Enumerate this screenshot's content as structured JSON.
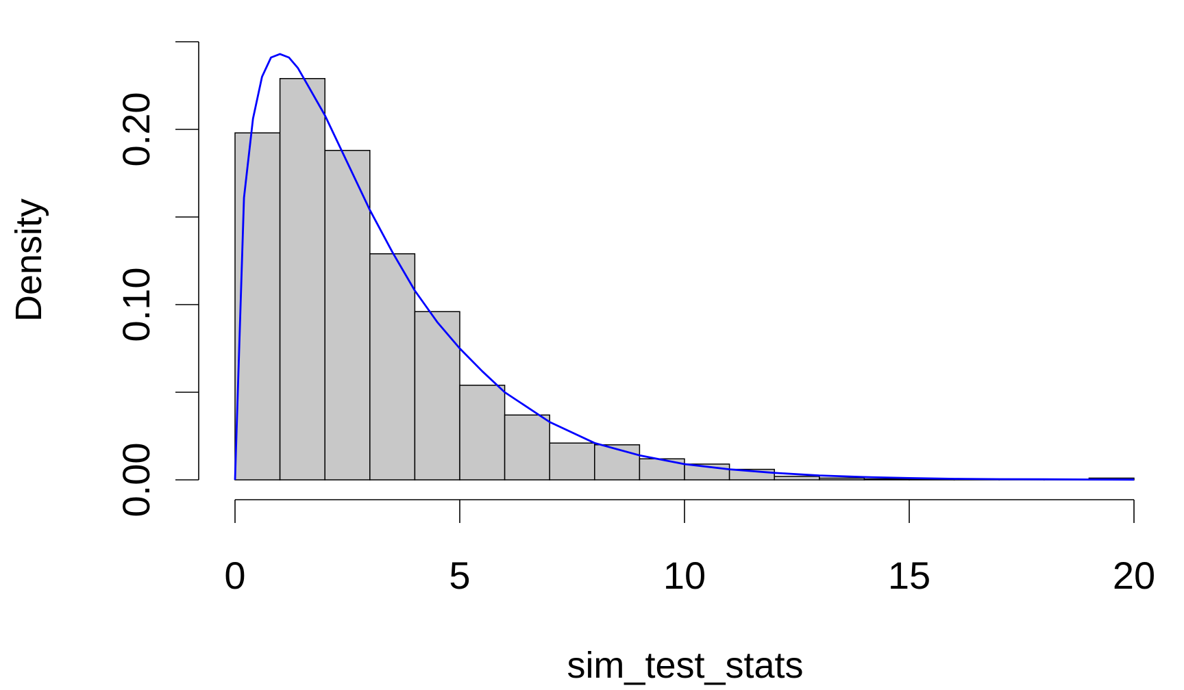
{
  "chart_data": {
    "type": "bar",
    "xlabel": "sim_test_stats",
    "ylabel": "Density",
    "xlim": [
      0,
      20
    ],
    "ylim": [
      0,
      0.25
    ],
    "x_ticks": [
      {
        "value": 0,
        "label": "0"
      },
      {
        "value": 5,
        "label": "5"
      },
      {
        "value": 10,
        "label": "10"
      },
      {
        "value": 15,
        "label": "15"
      },
      {
        "value": 20,
        "label": "20"
      }
    ],
    "y_ticks": [
      {
        "value": 0.0,
        "label": "0.00"
      },
      {
        "value": 0.05,
        "label": ""
      },
      {
        "value": 0.1,
        "label": "0.10"
      },
      {
        "value": 0.15,
        "label": ""
      },
      {
        "value": 0.2,
        "label": "0.20"
      },
      {
        "value": 0.25,
        "label": ""
      }
    ],
    "histogram": {
      "bin_edges": [
        0,
        1,
        2,
        3,
        4,
        5,
        6,
        7,
        8,
        9,
        10,
        11,
        12,
        13,
        14,
        15,
        16,
        17,
        18,
        19,
        20
      ],
      "density": [
        0.198,
        0.229,
        0.188,
        0.129,
        0.096,
        0.054,
        0.037,
        0.021,
        0.02,
        0.012,
        0.009,
        0.006,
        0.002,
        0.001,
        0.0005,
        0.0003,
        0.0002,
        0.0001,
        0.0001,
        0.001
      ],
      "fill": "#c8c8c8",
      "edge": "#000000"
    },
    "density_curve": {
      "color": "#0000ff",
      "x": [
        0,
        0.2,
        0.4,
        0.6,
        0.8,
        1.0,
        1.2,
        1.4,
        1.6,
        2.0,
        2.5,
        3.0,
        3.5,
        4.0,
        4.5,
        5.0,
        5.5,
        6.0,
        7.0,
        8.0,
        9.0,
        10.0,
        11.0,
        12.0,
        13.0,
        14.0,
        15.0,
        16.0,
        17.0,
        18.0,
        19.0,
        20.0
      ],
      "y": [
        0,
        0.161,
        0.206,
        0.23,
        0.241,
        0.243,
        0.241,
        0.235,
        0.226,
        0.208,
        0.181,
        0.154,
        0.13,
        0.108,
        0.09,
        0.075,
        0.062,
        0.05,
        0.033,
        0.021,
        0.014,
        0.009,
        0.006,
        0.004,
        0.0025,
        0.0016,
        0.001,
        0.0006,
        0.0004,
        0.0003,
        0.0002,
        0.0001
      ]
    }
  }
}
